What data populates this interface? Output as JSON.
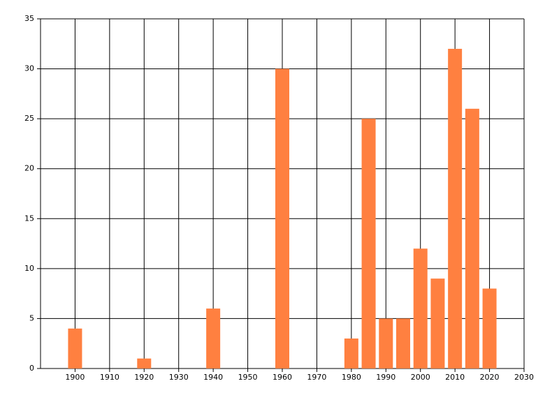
{
  "chart_data": {
    "type": "bar",
    "x": [
      1900,
      1920,
      1940,
      1960,
      1980,
      1985,
      1990,
      1995,
      2000,
      2005,
      2010,
      2015,
      2020
    ],
    "values": [
      4,
      1,
      6,
      30,
      3,
      25,
      5,
      5,
      12,
      9,
      32,
      26,
      8
    ],
    "color": "#ff8040",
    "xlim": [
      1890,
      2030
    ],
    "xticks": [
      1900,
      1910,
      1920,
      1930,
      1940,
      1950,
      1960,
      1970,
      1980,
      1990,
      2000,
      2010,
      2020,
      2030
    ],
    "ylim": [
      0,
      35
    ],
    "yticks": [
      0,
      5,
      10,
      15,
      20,
      25,
      30,
      35
    ],
    "grid": true
  }
}
